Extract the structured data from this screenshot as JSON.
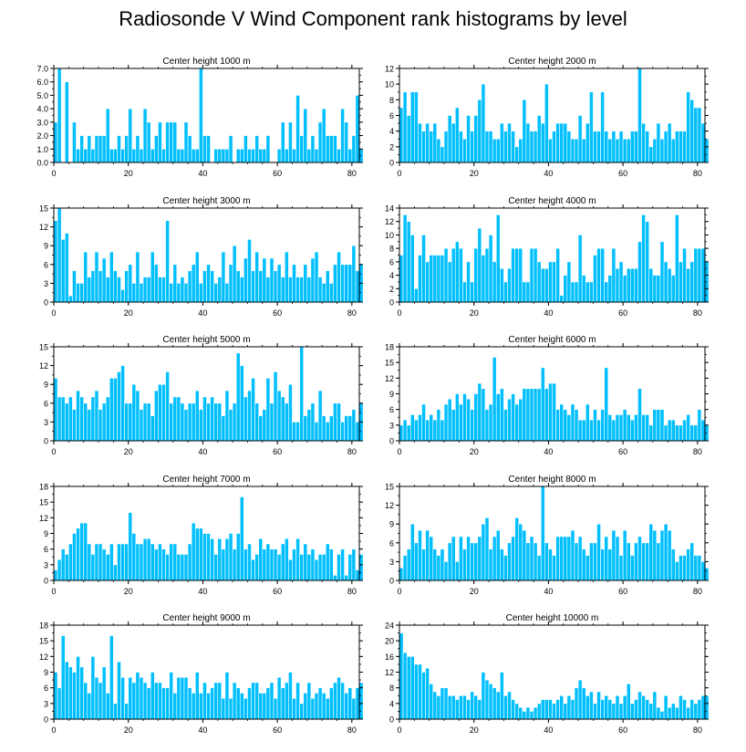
{
  "title": "Radiosonde V Wind Component rank histograms by level",
  "colors": {
    "bar": "#00bfff",
    "bar_edge": "#ffffff",
    "axis": "#000000"
  },
  "chart_data": [
    {
      "type": "bar",
      "title": "Center height 1000 m",
      "x_start": 0,
      "xticks": [
        0,
        20,
        40,
        60,
        80
      ],
      "xlim": [
        0,
        82
      ],
      "ylim": [
        0,
        7
      ],
      "yticks": [
        0,
        1,
        2,
        3,
        4,
        5,
        6,
        7
      ],
      "ytick_labels": [
        "0.0",
        "1.0",
        "2.0",
        "3.0",
        "4.0",
        "5.0",
        "6.0",
        "7.0"
      ],
      "values": [
        3,
        7,
        0,
        6,
        0,
        3,
        1,
        2,
        1,
        2,
        1,
        2,
        2,
        2,
        4,
        1,
        1,
        2,
        1,
        2,
        4,
        1,
        2,
        1,
        4,
        3,
        1,
        2,
        3,
        1,
        3,
        3,
        3,
        1,
        1,
        3,
        2,
        1,
        1,
        7,
        2,
        2,
        0,
        1,
        1,
        1,
        1,
        2,
        0,
        1,
        1,
        2,
        1,
        1,
        2,
        1,
        1,
        2,
        0,
        0,
        1,
        3,
        1,
        3,
        1,
        5,
        2,
        4,
        1,
        2,
        1,
        3,
        4,
        2,
        2,
        2,
        1,
        4,
        3,
        1,
        2,
        5,
        1
      ]
    },
    {
      "type": "bar",
      "title": "Center height 2000 m",
      "x_start": 0,
      "xticks": [
        0,
        20,
        40,
        60,
        80
      ],
      "xlim": [
        0,
        82
      ],
      "ylim": [
        0,
        12
      ],
      "yticks": [
        0,
        2,
        4,
        6,
        8,
        10,
        12
      ],
      "ytick_labels": [
        "0",
        "2",
        "4",
        "6",
        "8",
        "10",
        "12"
      ],
      "values": [
        7,
        9,
        6,
        9,
        9,
        5,
        4,
        5,
        4,
        5,
        3,
        2,
        4,
        6,
        5,
        7,
        4,
        3,
        6,
        4,
        6,
        8,
        10,
        4,
        4,
        3,
        3,
        5,
        4,
        5,
        4,
        2,
        3,
        8,
        5,
        4,
        4,
        6,
        5,
        10,
        3,
        4,
        5,
        5,
        5,
        4,
        3,
        3,
        6,
        3,
        5,
        9,
        4,
        4,
        9,
        4,
        3,
        4,
        3,
        4,
        3,
        3,
        4,
        4,
        12,
        5,
        4,
        2,
        3,
        5,
        3,
        4,
        5,
        3,
        4,
        4,
        4,
        9,
        8,
        7,
        7,
        5,
        3
      ]
    },
    {
      "type": "bar",
      "title": "Center height 3000 m",
      "x_start": 0,
      "xticks": [
        0,
        20,
        40,
        60,
        80
      ],
      "xlim": [
        0,
        82
      ],
      "ylim": [
        0,
        15
      ],
      "yticks": [
        0,
        3,
        6,
        9,
        12,
        15
      ],
      "ytick_labels": [
        "0",
        "3",
        "6",
        "9",
        "12",
        "15"
      ],
      "values": [
        13,
        15,
        10,
        11,
        1,
        5,
        3,
        3,
        8,
        4,
        5,
        8,
        5,
        7,
        4,
        8,
        5,
        4,
        2,
        5,
        6,
        3,
        8,
        3,
        4,
        4,
        8,
        6,
        4,
        4,
        13,
        3,
        6,
        3,
        4,
        3,
        5,
        6,
        8,
        3,
        5,
        6,
        5,
        3,
        4,
        8,
        3,
        6,
        9,
        5,
        4,
        7,
        10,
        5,
        8,
        5,
        7,
        4,
        7,
        5,
        6,
        4,
        8,
        4,
        6,
        4,
        4,
        6,
        4,
        7,
        8,
        4,
        3,
        5,
        3,
        6,
        8,
        6,
        6,
        6,
        9,
        5,
        6
      ]
    },
    {
      "type": "bar",
      "title": "Center height 4000 m",
      "x_start": 0,
      "xticks": [
        0,
        20,
        40,
        60,
        80
      ],
      "xlim": [
        0,
        82
      ],
      "ylim": [
        0,
        14
      ],
      "yticks": [
        0,
        2,
        4,
        6,
        8,
        10,
        12,
        14
      ],
      "ytick_labels": [
        "0",
        "2",
        "4",
        "6",
        "8",
        "10",
        "12",
        "14"
      ],
      "values": [
        7,
        13,
        12,
        10,
        2,
        7,
        10,
        6,
        7,
        7,
        7,
        7,
        8,
        6,
        8,
        9,
        8,
        3,
        6,
        3,
        8,
        11,
        7,
        8,
        10,
        6,
        13,
        5,
        3,
        5,
        8,
        8,
        8,
        3,
        3,
        8,
        8,
        6,
        5,
        5,
        6,
        6,
        8,
        1,
        4,
        6,
        3,
        3,
        10,
        4,
        3,
        3,
        7,
        8,
        8,
        3,
        4,
        8,
        5,
        6,
        4,
        5,
        5,
        5,
        9,
        13,
        12,
        5,
        4,
        4,
        9,
        6,
        5,
        4,
        13,
        6,
        8,
        5,
        6,
        8,
        8,
        8,
        6
      ]
    },
    {
      "type": "bar",
      "title": "Center height 5000 m",
      "x_start": 0,
      "xticks": [
        0,
        20,
        40,
        60,
        80
      ],
      "xlim": [
        0,
        82
      ],
      "ylim": [
        0,
        15
      ],
      "yticks": [
        0,
        3,
        6,
        9,
        12,
        15
      ],
      "ytick_labels": [
        "0",
        "3",
        "6",
        "9",
        "12",
        "15"
      ],
      "values": [
        10,
        7,
        7,
        6,
        7,
        5,
        8,
        7,
        6,
        5,
        7,
        8,
        5,
        6,
        7,
        10,
        10,
        11,
        12,
        6,
        6,
        9,
        8,
        5,
        6,
        6,
        4,
        8,
        9,
        9,
        11,
        6,
        7,
        7,
        6,
        5,
        6,
        6,
        8,
        5,
        7,
        6,
        7,
        6,
        6,
        4,
        8,
        5,
        6,
        14,
        12,
        7,
        8,
        10,
        6,
        4,
        5,
        10,
        6,
        11,
        8,
        7,
        6,
        9,
        3,
        3,
        15,
        4,
        5,
        6,
        3,
        8,
        4,
        3,
        4,
        6,
        6,
        3,
        4,
        4,
        5,
        3,
        6
      ]
    },
    {
      "type": "bar",
      "title": "Center height 6000 m",
      "x_start": 0,
      "xticks": [
        0,
        20,
        40,
        60,
        80
      ],
      "xlim": [
        0,
        82
      ],
      "ylim": [
        0,
        18
      ],
      "yticks": [
        0,
        3,
        6,
        9,
        12,
        15,
        18
      ],
      "ytick_labels": [
        "0",
        "3",
        "6",
        "9",
        "12",
        "15",
        "18"
      ],
      "values": [
        3,
        4,
        3,
        5,
        4,
        5,
        7,
        4,
        5,
        4,
        6,
        4,
        7,
        8,
        6,
        9,
        7,
        9,
        8,
        6,
        9,
        11,
        10,
        6,
        7,
        16,
        9,
        10,
        6,
        8,
        9,
        7,
        8,
        10,
        10,
        10,
        10,
        10,
        14,
        10,
        11,
        11,
        6,
        7,
        6,
        5,
        7,
        6,
        4,
        4,
        7,
        4,
        6,
        4,
        6,
        14,
        5,
        4,
        5,
        5,
        6,
        5,
        4,
        5,
        10,
        5,
        5,
        3,
        6,
        6,
        6,
        3,
        4,
        4,
        3,
        3,
        4,
        5,
        3,
        3,
        6,
        4,
        3
      ]
    },
    {
      "type": "bar",
      "title": "Center height 7000 m",
      "x_start": 0,
      "xticks": [
        0,
        20,
        40,
        60,
        80
      ],
      "xlim": [
        0,
        82
      ],
      "ylim": [
        0,
        18
      ],
      "yticks": [
        0,
        3,
        6,
        9,
        12,
        15,
        18
      ],
      "ytick_labels": [
        "0",
        "3",
        "6",
        "9",
        "12",
        "15",
        "18"
      ],
      "values": [
        2,
        4,
        6,
        5,
        7,
        9,
        10,
        11,
        11,
        7,
        5,
        7,
        7,
        6,
        5,
        7,
        3,
        7,
        7,
        7,
        13,
        9,
        7,
        7,
        8,
        8,
        7,
        6,
        7,
        6,
        5,
        7,
        7,
        5,
        5,
        5,
        7,
        11,
        10,
        10,
        9,
        9,
        8,
        5,
        8,
        6,
        8,
        9,
        6,
        9,
        16,
        6,
        7,
        4,
        5,
        8,
        6,
        7,
        6,
        6,
        5,
        7,
        8,
        4,
        6,
        8,
        5,
        7,
        5,
        6,
        4,
        5,
        5,
        7,
        6,
        1,
        5,
        6,
        1,
        5,
        6,
        2,
        5
      ]
    },
    {
      "type": "bar",
      "title": "Center height 8000 m",
      "x_start": 0,
      "xticks": [
        0,
        20,
        40,
        60,
        80
      ],
      "xlim": [
        0,
        82
      ],
      "ylim": [
        0,
        15
      ],
      "yticks": [
        0,
        3,
        6,
        9,
        12,
        15
      ],
      "ytick_labels": [
        "0",
        "3",
        "6",
        "9",
        "12",
        "15"
      ],
      "values": [
        2,
        4,
        5,
        9,
        6,
        8,
        5,
        8,
        7,
        5,
        4,
        5,
        3,
        6,
        7,
        3,
        7,
        5,
        7,
        6,
        6,
        7,
        9,
        10,
        5,
        7,
        8,
        5,
        4,
        6,
        7,
        10,
        9,
        8,
        6,
        7,
        6,
        4,
        15,
        6,
        5,
        4,
        7,
        7,
        7,
        7,
        8,
        6,
        7,
        5,
        4,
        6,
        6,
        9,
        5,
        7,
        5,
        8,
        7,
        4,
        8,
        6,
        4,
        6,
        7,
        6,
        6,
        9,
        8,
        6,
        8,
        9,
        8,
        5,
        3,
        4,
        4,
        5,
        6,
        4,
        4,
        3,
        2
      ]
    },
    {
      "type": "bar",
      "title": "Center height 9000 m",
      "x_start": 0,
      "xticks": [
        0,
        20,
        40,
        60,
        80
      ],
      "xlim": [
        0,
        82
      ],
      "ylim": [
        0,
        18
      ],
      "yticks": [
        0,
        3,
        6,
        9,
        12,
        15,
        18
      ],
      "ytick_labels": [
        "0",
        "3",
        "6",
        "9",
        "12",
        "15",
        "18"
      ],
      "values": [
        9,
        6,
        16,
        11,
        10,
        9,
        12,
        10,
        7,
        5,
        12,
        8,
        7,
        10,
        5,
        16,
        3,
        11,
        8,
        3,
        8,
        7,
        9,
        8,
        7,
        6,
        9,
        7,
        7,
        6,
        6,
        9,
        5,
        8,
        8,
        8,
        6,
        5,
        9,
        5,
        7,
        5,
        6,
        7,
        7,
        4,
        9,
        4,
        7,
        6,
        5,
        4,
        6,
        7,
        7,
        5,
        5,
        6,
        7,
        4,
        8,
        6,
        7,
        9,
        4,
        7,
        3,
        5,
        7,
        4,
        5,
        6,
        5,
        4,
        6,
        7,
        8,
        7,
        5,
        6,
        4,
        6,
        7
      ]
    },
    {
      "type": "bar",
      "title": "Center height 10000 m",
      "x_start": 0,
      "xticks": [
        0,
        20,
        40,
        60,
        80
      ],
      "xlim": [
        0,
        82
      ],
      "ylim": [
        0,
        24
      ],
      "yticks": [
        0,
        4,
        8,
        12,
        16,
        20,
        24
      ],
      "ytick_labels": [
        "0",
        "4",
        "8",
        "12",
        "16",
        "20",
        "24"
      ],
      "values": [
        22,
        17,
        16,
        16,
        14,
        14,
        12,
        13,
        9,
        7,
        6,
        8,
        8,
        6,
        6,
        5,
        6,
        6,
        5,
        7,
        6,
        5,
        12,
        10,
        9,
        8,
        7,
        12,
        6,
        7,
        5,
        4,
        3,
        2,
        3,
        2,
        3,
        4,
        5,
        5,
        5,
        4,
        5,
        6,
        4,
        6,
        5,
        8,
        10,
        8,
        6,
        7,
        4,
        7,
        5,
        6,
        5,
        4,
        6,
        4,
        6,
        9,
        4,
        5,
        7,
        6,
        5,
        4,
        7,
        3,
        2,
        6,
        3,
        4,
        3,
        6,
        5,
        3,
        5,
        4,
        5,
        6,
        6
      ]
    }
  ]
}
